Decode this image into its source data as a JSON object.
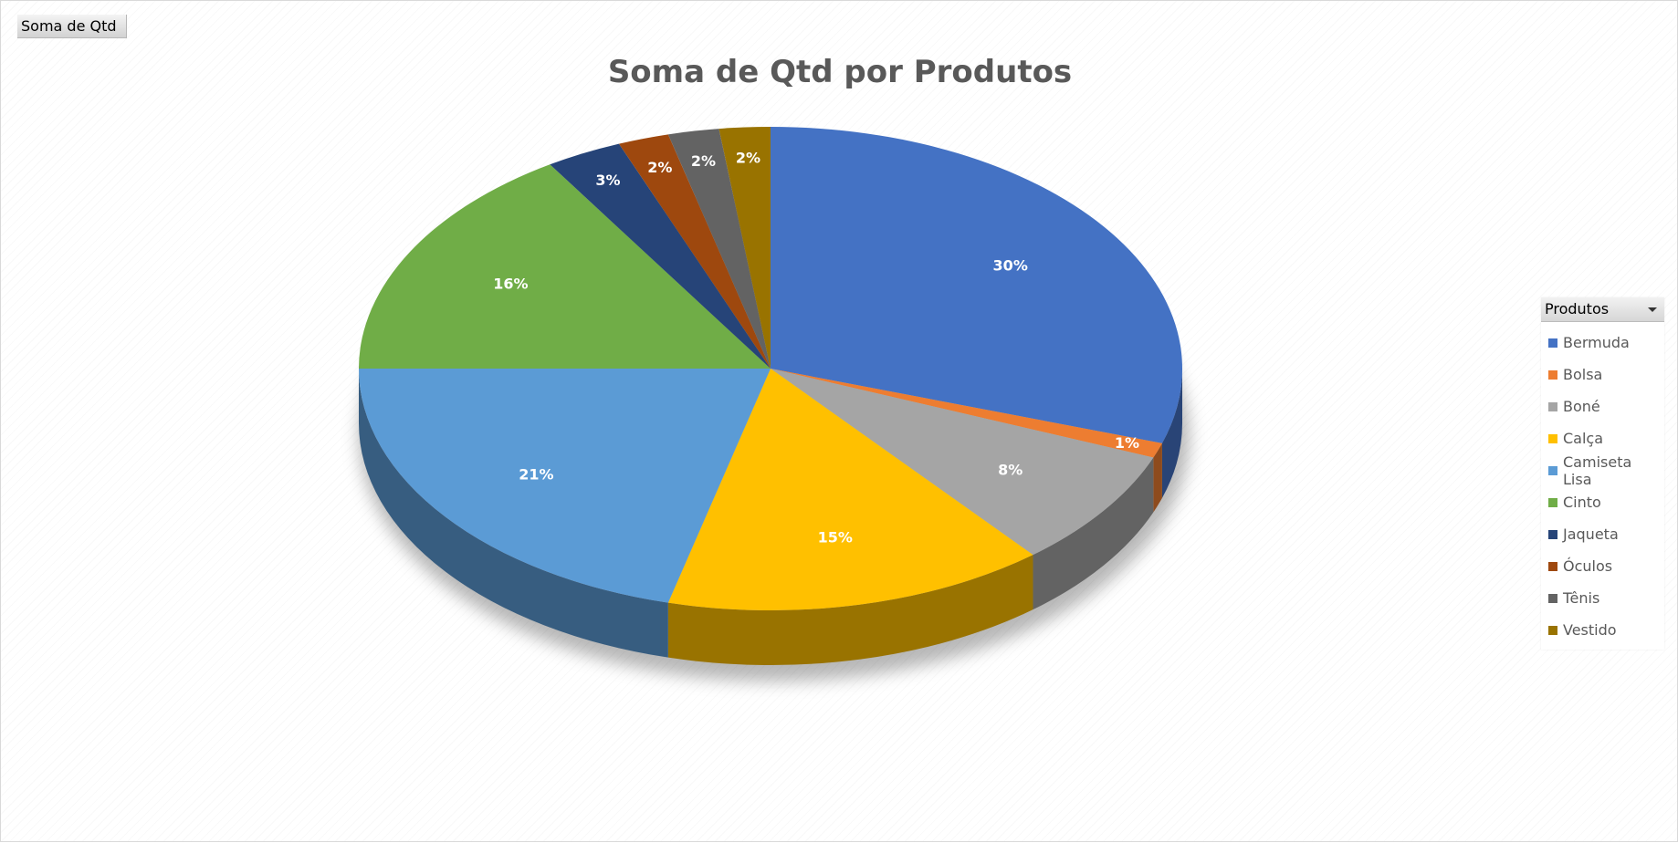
{
  "field_button": {
    "label": "Soma de Qtd"
  },
  "legend": {
    "header": "Produtos",
    "filter_icon": "dropdown-arrow-icon"
  },
  "chart_data": {
    "type": "pie",
    "title": "Soma de Qtd por Produtos",
    "categories": [
      "Bermuda",
      "Bolsa",
      "Boné",
      "Calça",
      "Camiseta Lisa",
      "Cinto",
      "Jaqueta",
      "Óculos",
      "Tênis",
      "Vestido"
    ],
    "values": [
      30,
      1,
      8,
      15,
      21,
      16,
      3,
      2,
      2,
      2
    ],
    "labels": [
      "30%",
      "1%",
      "8%",
      "15%",
      "21%",
      "16%",
      "3%",
      "2%",
      "2%",
      "2%"
    ],
    "colors": [
      "#4472C4",
      "#ED7D31",
      "#A5A5A5",
      "#FFC000",
      "#5B9BD5",
      "#70AD47",
      "#264478",
      "#9E480E",
      "#636363",
      "#997300"
    ],
    "legend_position": "right",
    "style": "3d"
  }
}
